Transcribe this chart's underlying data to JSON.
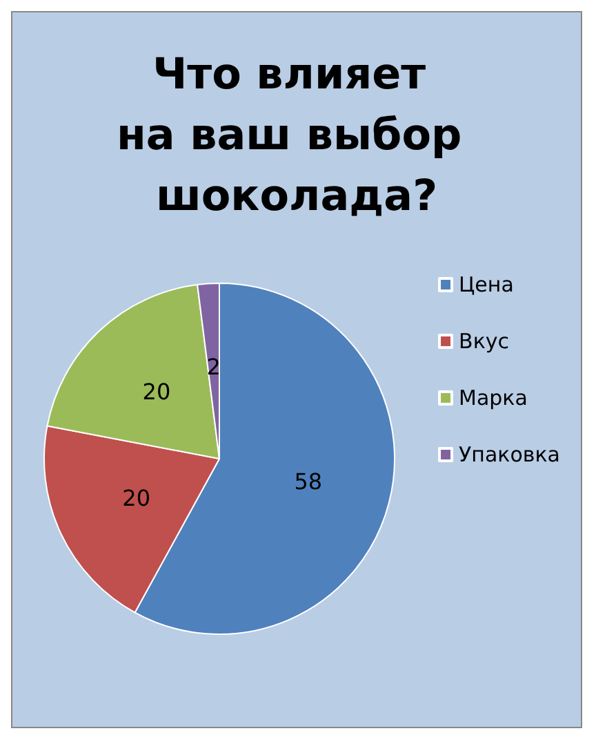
{
  "chart_data": {
    "type": "pie",
    "title": "Что влияет на ваш выбор шоколада?",
    "categories": [
      "Цена",
      "Вкус",
      "Марка",
      "Упаковка"
    ],
    "values": [
      58,
      20,
      20,
      2
    ],
    "colors": [
      "#4f81bd",
      "#c0504d",
      "#9bbb59",
      "#8064a2"
    ],
    "data_labels": true,
    "legend": "right"
  }
}
